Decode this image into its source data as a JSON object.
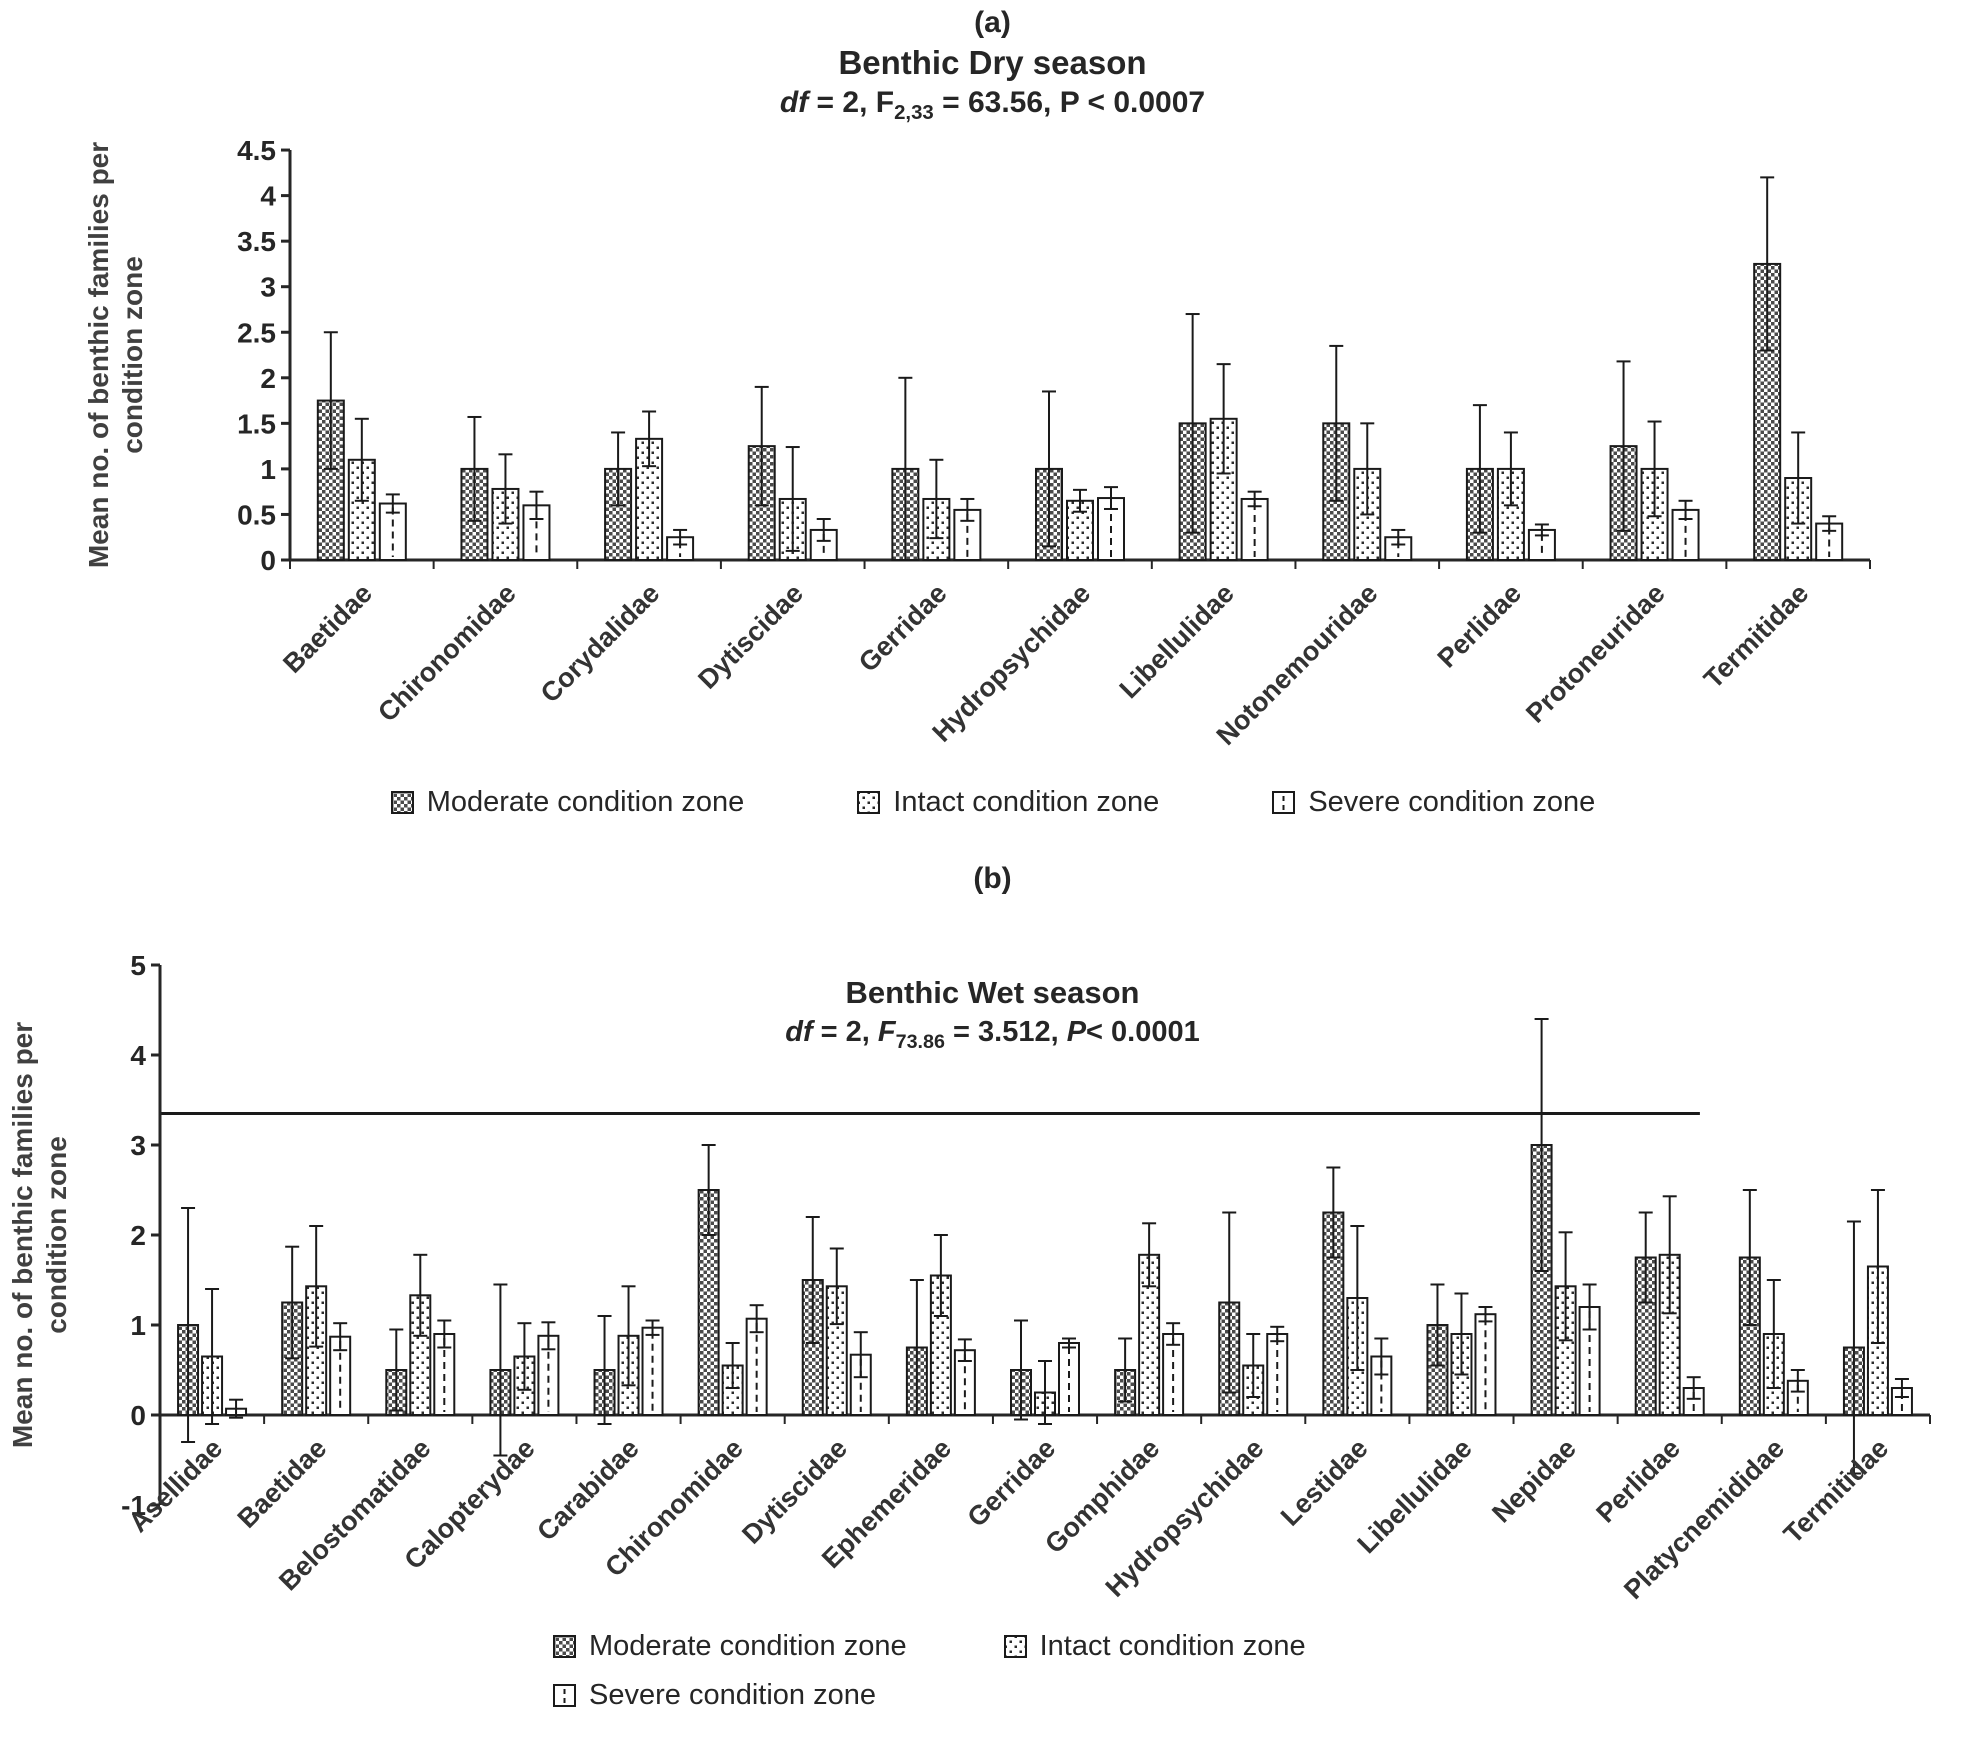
{
  "chart_data": [
    {
      "id": "a",
      "type": "bar",
      "panel_label": "(a)",
      "title": "Benthic Dry season",
      "stats_text": "df = 2, F2,33 = 63.56, P < 0.0007",
      "stats_parts": {
        "df": "df",
        "p1": " = 2, F",
        "f_sub": "2,33",
        "p2": " = 63.56, P < 0.0007"
      },
      "ylabel_lines": [
        "Mean no. of benthic families per",
        "condition zone"
      ],
      "ylim": [
        0,
        4.5
      ],
      "ytick_step": 0.5,
      "grid": false,
      "legend_position": "bottom",
      "categories": [
        "Baetidae",
        "Chironomidae",
        "Corydalidae",
        "Dytiscidae",
        "Gerridae",
        "Hydropsychidae",
        "Libellulidae",
        "Notonemouridae",
        "Perlidae",
        "Protoneuridae",
        "Termitidae"
      ],
      "series": [
        {
          "key": "moderate",
          "name": "Moderate condition zone",
          "pattern": "moderate",
          "values": [
            1.75,
            1.0,
            1.0,
            1.25,
            1.0,
            1.0,
            1.5,
            1.5,
            1.0,
            1.25,
            3.25
          ],
          "errors": [
            0.75,
            0.57,
            0.4,
            0.65,
            1.0,
            0.85,
            1.2,
            0.85,
            0.7,
            0.93,
            0.95
          ]
        },
        {
          "key": "intact",
          "name": "Intact condition zone",
          "pattern": "intact",
          "values": [
            1.1,
            0.78,
            1.33,
            0.67,
            0.67,
            0.65,
            1.55,
            1.0,
            1.0,
            1.0,
            0.9
          ],
          "errors": [
            0.45,
            0.38,
            0.3,
            0.57,
            0.43,
            0.12,
            0.6,
            0.5,
            0.4,
            0.52,
            0.5
          ]
        },
        {
          "key": "severe",
          "name": "Severe condition zone",
          "pattern": "dash-center",
          "values": [
            0.62,
            0.6,
            0.25,
            0.33,
            0.55,
            0.68,
            0.67,
            0.25,
            0.33,
            0.55,
            0.4
          ],
          "errors": [
            0.1,
            0.15,
            0.08,
            0.12,
            0.12,
            0.12,
            0.08,
            0.08,
            0.06,
            0.1,
            0.08
          ]
        }
      ]
    },
    {
      "id": "b",
      "type": "bar",
      "panel_label": "(b)",
      "title": "Benthic Wet season",
      "stats_text": "df = 2, F73.86 = 3.512,  P< 0.0001",
      "stats_parts": {
        "df": "df",
        "p1": " = 2, ",
        "F": "F",
        "f_sub": "73.86",
        "p2": " = 3.512,  ",
        "P": "P",
        "p3": "< 0.0001"
      },
      "ylabel_lines": [
        "Mean no. of benthic families per",
        "condition zone"
      ],
      "ylim": [
        -1,
        5
      ],
      "ytick_step": 1,
      "grid": false,
      "legend_position": "bottom",
      "ref_line": {
        "y": 3.35,
        "x_end_frac": 0.87
      },
      "categories": [
        "Asellidae",
        "Baetidae",
        "Belostomatidae",
        "Calopterydae",
        "Carabidae",
        "Chironomidae",
        "Dytiscidae",
        "Ephemeridae",
        "Gerridae",
        "Gomphidae",
        "Hydropsychidae",
        "Lestidae",
        "Libellulidae",
        "Nepidae",
        "Perlidae",
        "Platycnemididae",
        "Termitidae"
      ],
      "series": [
        {
          "key": "moderate",
          "name": "Moderate condition zone",
          "pattern": "moderate",
          "values": [
            1.0,
            1.25,
            0.5,
            0.5,
            0.5,
            2.5,
            1.5,
            0.75,
            0.5,
            0.5,
            1.25,
            2.25,
            1.0,
            3.0,
            1.75,
            1.75,
            0.75
          ],
          "errors": [
            1.3,
            0.62,
            0.45,
            0.95,
            0.6,
            0.5,
            0.7,
            0.75,
            0.55,
            0.35,
            1.0,
            0.5,
            0.45,
            1.4,
            0.5,
            0.75,
            1.4
          ]
        },
        {
          "key": "intact",
          "name": "Intact condition zone",
          "pattern": "intact",
          "values": [
            0.65,
            1.43,
            1.33,
            0.65,
            0.88,
            0.55,
            1.43,
            1.55,
            0.25,
            1.78,
            0.55,
            1.3,
            0.9,
            1.43,
            1.78,
            0.9,
            1.65
          ],
          "errors": [
            0.75,
            0.67,
            0.45,
            0.37,
            0.55,
            0.25,
            0.42,
            0.45,
            0.35,
            0.35,
            0.35,
            0.8,
            0.45,
            0.6,
            0.65,
            0.6,
            0.85
          ]
        },
        {
          "key": "severe",
          "name": "Severe condition zone",
          "pattern": "dash-center",
          "values": [
            0.07,
            0.87,
            0.9,
            0.88,
            0.97,
            1.07,
            0.67,
            0.72,
            0.8,
            0.9,
            0.9,
            0.65,
            1.12,
            1.2,
            0.3,
            0.38,
            0.3
          ],
          "errors": [
            0.1,
            0.15,
            0.15,
            0.15,
            0.08,
            0.15,
            0.25,
            0.12,
            0.05,
            0.12,
            0.08,
            0.2,
            0.08,
            0.25,
            0.12,
            0.12,
            0.1
          ]
        }
      ]
    }
  ],
  "colors": {
    "axis": "#262626",
    "bar_outline": "#1a1a1a",
    "text": "#262626",
    "axis_label": "#404040",
    "pattern_dark": "#4a4a4a"
  }
}
